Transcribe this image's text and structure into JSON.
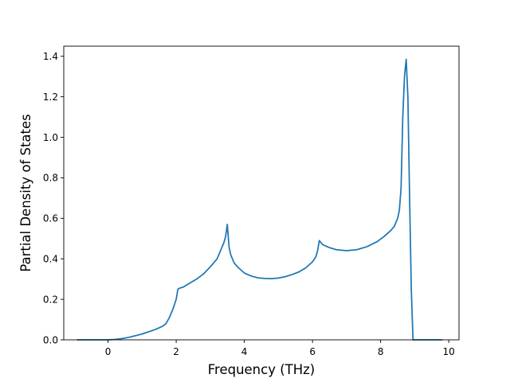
{
  "chart_data": {
    "type": "line",
    "title": "",
    "xlabel": "Frequency (THz)",
    "ylabel": "Partial Density of States",
    "xlim": [
      -1.3,
      10.3
    ],
    "ylim": [
      0.0,
      1.45
    ],
    "xticks": [
      0,
      2,
      4,
      6,
      8,
      10
    ],
    "xtick_labels": [
      "0",
      "2",
      "4",
      "6",
      "8",
      "10"
    ],
    "yticks": [
      0.0,
      0.2,
      0.4,
      0.6,
      0.8,
      1.0,
      1.2,
      1.4
    ],
    "ytick_labels": [
      "0.0",
      "0.2",
      "0.4",
      "0.6",
      "0.8",
      "1.0",
      "1.2",
      "1.4"
    ],
    "grid": false,
    "line_color": "#1f77b4",
    "series": [
      {
        "x": [
          -0.9,
          0.0,
          0.2,
          0.4,
          0.6,
          0.8,
          1.0,
          1.2,
          1.4,
          1.6,
          1.7,
          1.8,
          1.9,
          2.0,
          2.05,
          2.1,
          2.2,
          2.4,
          2.6,
          2.8,
          3.0,
          3.2,
          3.3,
          3.4,
          3.45,
          3.5,
          3.55,
          3.6,
          3.7,
          3.8,
          4.0,
          4.2,
          4.4,
          4.6,
          4.8,
          5.0,
          5.2,
          5.4,
          5.6,
          5.8,
          6.0,
          6.1,
          6.15,
          6.2,
          6.3,
          6.5,
          6.7,
          7.0,
          7.3,
          7.6,
          7.9,
          8.1,
          8.3,
          8.4,
          8.5,
          8.55,
          8.6,
          8.65,
          8.7,
          8.75,
          8.8,
          8.85,
          8.9,
          8.95,
          9.0,
          9.5,
          9.8
        ],
        "y": [
          0.0,
          0.0,
          0.002,
          0.006,
          0.012,
          0.02,
          0.029,
          0.04,
          0.052,
          0.067,
          0.08,
          0.11,
          0.15,
          0.2,
          0.25,
          0.255,
          0.26,
          0.28,
          0.3,
          0.325,
          0.36,
          0.4,
          0.44,
          0.48,
          0.51,
          0.57,
          0.46,
          0.42,
          0.38,
          0.36,
          0.33,
          0.315,
          0.306,
          0.303,
          0.302,
          0.305,
          0.312,
          0.322,
          0.335,
          0.355,
          0.385,
          0.41,
          0.44,
          0.49,
          0.47,
          0.455,
          0.445,
          0.44,
          0.445,
          0.46,
          0.485,
          0.51,
          0.54,
          0.56,
          0.6,
          0.64,
          0.75,
          1.1,
          1.3,
          1.385,
          1.2,
          0.7,
          0.25,
          0.0,
          0.0,
          0.0,
          0.0
        ]
      }
    ]
  }
}
